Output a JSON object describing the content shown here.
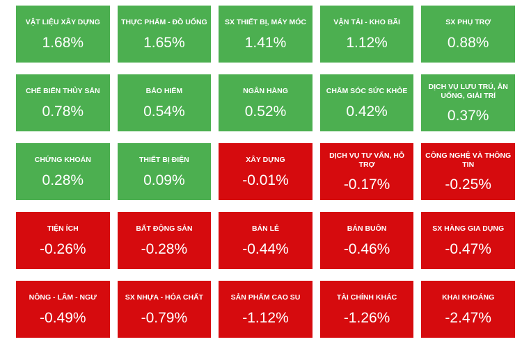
{
  "palette": {
    "positive": "#4CAF50",
    "negative": "#D60B0E",
    "tile_text": "#FFFFFF",
    "background": "#FFFFFF"
  },
  "chart_data": {
    "type": "heatmap",
    "title": "",
    "grid": [
      5,
      5
    ],
    "value_unit": "%",
    "categories": [
      "VẬT LIỆU XÂY DỰNG",
      "THỰC PHẨM - ĐỒ UỐNG",
      "SX THIẾT BỊ, MÁY MÓC",
      "VẬN TẢI - KHO BÃI",
      "SX PHỤ TRỢ",
      "CHẾ BIẾN THỦY SẢN",
      "BẢO HIỂM",
      "NGÂN HÀNG",
      "CHĂM SÓC SỨC KHỎE",
      "DỊCH VỤ LƯU TRÚ, ĂN UỐNG, GIẢI TRÍ",
      "CHỨNG KHOÁN",
      "THIẾT BỊ ĐIỆN",
      "XÂY DỰNG",
      "DỊCH VỤ TƯ VẤN, HỖ TRỢ",
      "CÔNG NGHỆ VÀ THÔNG TIN",
      "TIỆN ÍCH",
      "BẤT ĐỘNG SẢN",
      "BÁN LẺ",
      "BÁN BUÔN",
      "SX HÀNG GIA DỤNG",
      "NÔNG - LÂM - NGƯ",
      "SX NHỰA - HÓA CHẤT",
      "SẢN PHẨM CAO SU",
      "TÀI CHÍNH KHÁC",
      "KHAI KHOÁNG"
    ],
    "values": [
      1.68,
      1.65,
      1.41,
      1.12,
      0.88,
      0.78,
      0.54,
      0.52,
      0.42,
      0.37,
      0.28,
      0.09,
      -0.01,
      -0.17,
      -0.25,
      -0.26,
      -0.28,
      -0.44,
      -0.46,
      -0.47,
      -0.49,
      -0.79,
      -1.12,
      -1.26,
      -2.47
    ],
    "color_rule": "value >= 0 -> positive green, value < 0 -> negative red",
    "legend": "none",
    "axes": "none"
  },
  "tiles": [
    {
      "label": "VẬT LIỆU XÂY DỰNG",
      "value": "1.68%",
      "direction": "up"
    },
    {
      "label": "THỰC PHẨM - ĐỒ UỐNG",
      "value": "1.65%",
      "direction": "up"
    },
    {
      "label": "SX THIẾT BỊ, MÁY MÓC",
      "value": "1.41%",
      "direction": "up"
    },
    {
      "label": "VẬN TẢI - KHO BÃI",
      "value": "1.12%",
      "direction": "up"
    },
    {
      "label": "SX PHỤ TRỢ",
      "value": "0.88%",
      "direction": "up"
    },
    {
      "label": "CHẾ BIẾN THỦY SẢN",
      "value": "0.78%",
      "direction": "up"
    },
    {
      "label": "BẢO HIỂM",
      "value": "0.54%",
      "direction": "up"
    },
    {
      "label": "NGÂN HÀNG",
      "value": "0.52%",
      "direction": "up"
    },
    {
      "label": "CHĂM SÓC SỨC KHỎE",
      "value": "0.42%",
      "direction": "up"
    },
    {
      "label": "DỊCH VỤ LƯU TRÚ, ĂN UỐNG, GIẢI TRÍ",
      "value": "0.37%",
      "direction": "up"
    },
    {
      "label": "CHỨNG KHOÁN",
      "value": "0.28%",
      "direction": "up"
    },
    {
      "label": "THIẾT BỊ ĐIỆN",
      "value": "0.09%",
      "direction": "up"
    },
    {
      "label": "XÂY DỰNG",
      "value": "-0.01%",
      "direction": "down"
    },
    {
      "label": "DỊCH VỤ TƯ VẤN, HỖ TRỢ",
      "value": "-0.17%",
      "direction": "down"
    },
    {
      "label": "CÔNG NGHỆ VÀ THÔNG TIN",
      "value": "-0.25%",
      "direction": "down"
    },
    {
      "label": "TIỆN ÍCH",
      "value": "-0.26%",
      "direction": "down"
    },
    {
      "label": "BẤT ĐỘNG SẢN",
      "value": "-0.28%",
      "direction": "down"
    },
    {
      "label": "BÁN LẺ",
      "value": "-0.44%",
      "direction": "down"
    },
    {
      "label": "BÁN BUÔN",
      "value": "-0.46%",
      "direction": "down"
    },
    {
      "label": "SX HÀNG GIA DỤNG",
      "value": "-0.47%",
      "direction": "down"
    },
    {
      "label": "NÔNG - LÂM - NGƯ",
      "value": "-0.49%",
      "direction": "down"
    },
    {
      "label": "SX NHỰA - HÓA CHẤT",
      "value": "-0.79%",
      "direction": "down"
    },
    {
      "label": "SẢN PHẨM CAO SU",
      "value": "-1.12%",
      "direction": "down"
    },
    {
      "label": "TÀI CHÍNH KHÁC",
      "value": "-1.26%",
      "direction": "down"
    },
    {
      "label": "KHAI KHOÁNG",
      "value": "-2.47%",
      "direction": "down"
    }
  ]
}
